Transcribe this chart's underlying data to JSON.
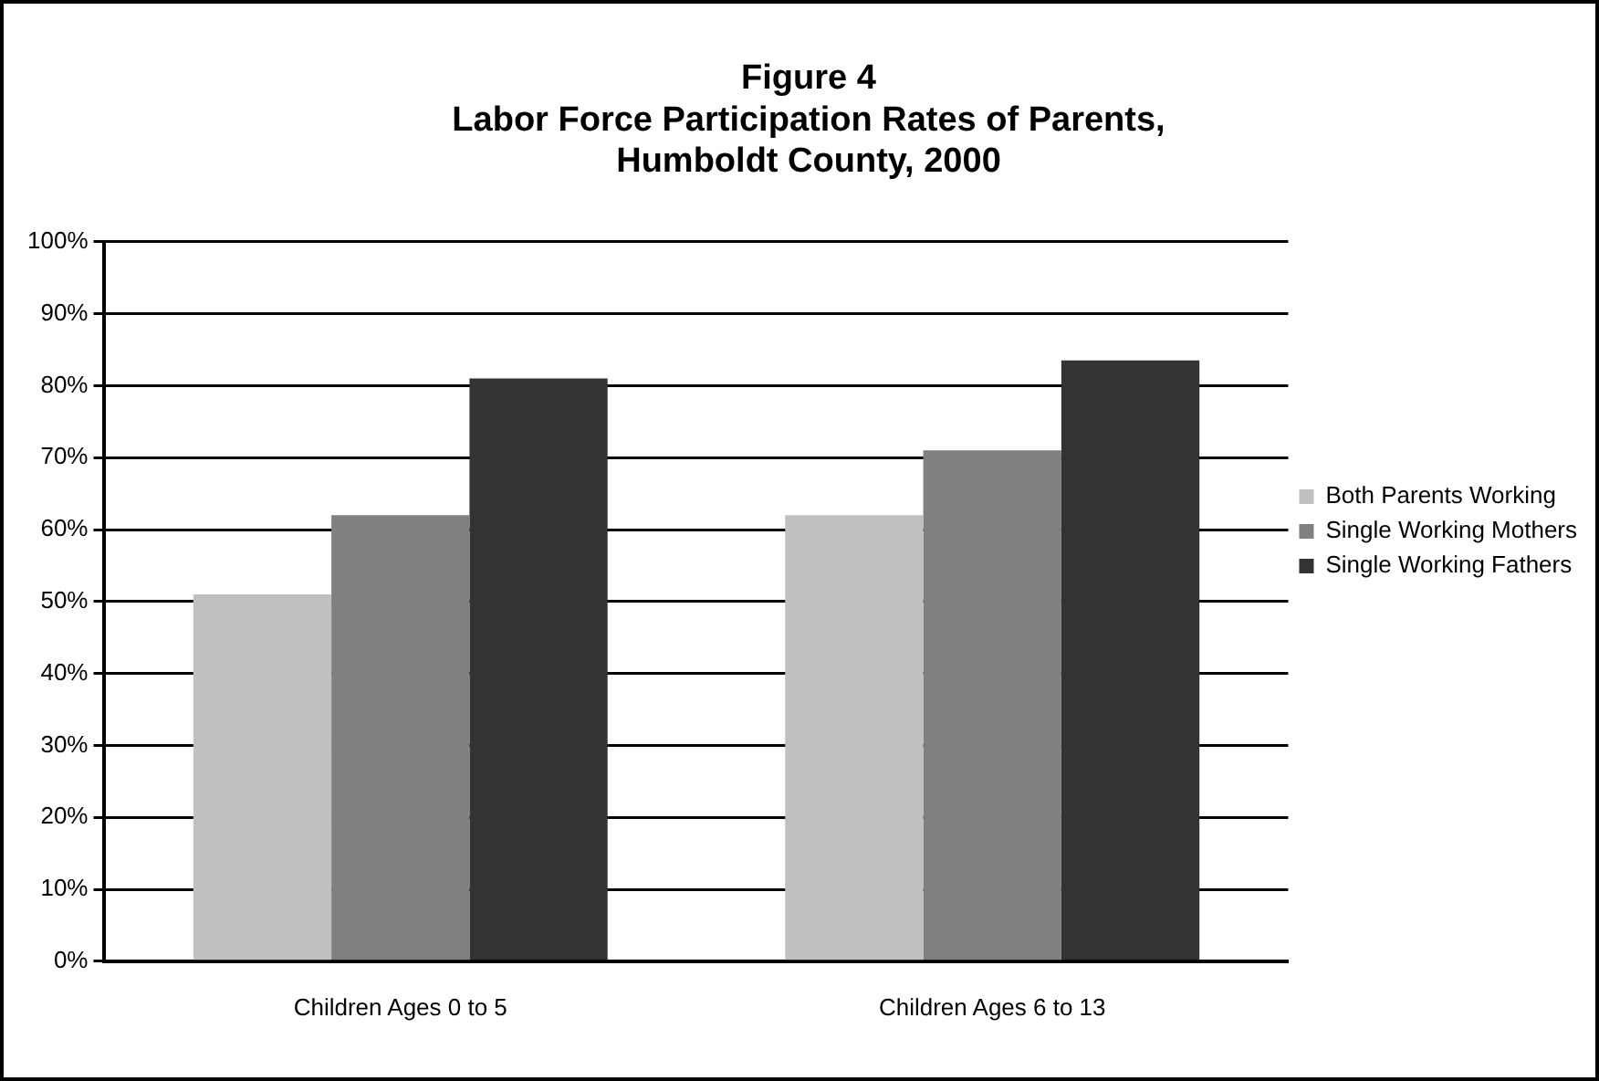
{
  "chart_data": {
    "type": "bar",
    "title": [
      "Figure 4",
      "Labor Force Participation Rates of Parents,",
      "Humboldt County, 2000"
    ],
    "categories": [
      "Children Ages 0 to 5",
      "Children Ages 6 to 13"
    ],
    "series": [
      {
        "name": "Both Parents Working",
        "color": "#c0c0c0",
        "values": [
          51,
          62
        ]
      },
      {
        "name": "Single Working Mothers",
        "color": "#808080",
        "values": [
          62,
          71
        ]
      },
      {
        "name": "Single Working Fathers",
        "color": "#333333",
        "values": [
          81,
          83.5
        ]
      }
    ],
    "ylim": [
      0,
      100
    ],
    "yticks": [
      {
        "value": 0,
        "label": "0%"
      },
      {
        "value": 10,
        "label": "10%"
      },
      {
        "value": 20,
        "label": "20%"
      },
      {
        "value": 30,
        "label": "30%"
      },
      {
        "value": 40,
        "label": "40%"
      },
      {
        "value": 50,
        "label": "50%"
      },
      {
        "value": 60,
        "label": "60%"
      },
      {
        "value": 70,
        "label": "70%"
      },
      {
        "value": 80,
        "label": "80%"
      },
      {
        "value": 90,
        "label": "90%"
      },
      {
        "value": 100,
        "label": "100%"
      }
    ],
    "grid": "y",
    "legend": "right"
  }
}
